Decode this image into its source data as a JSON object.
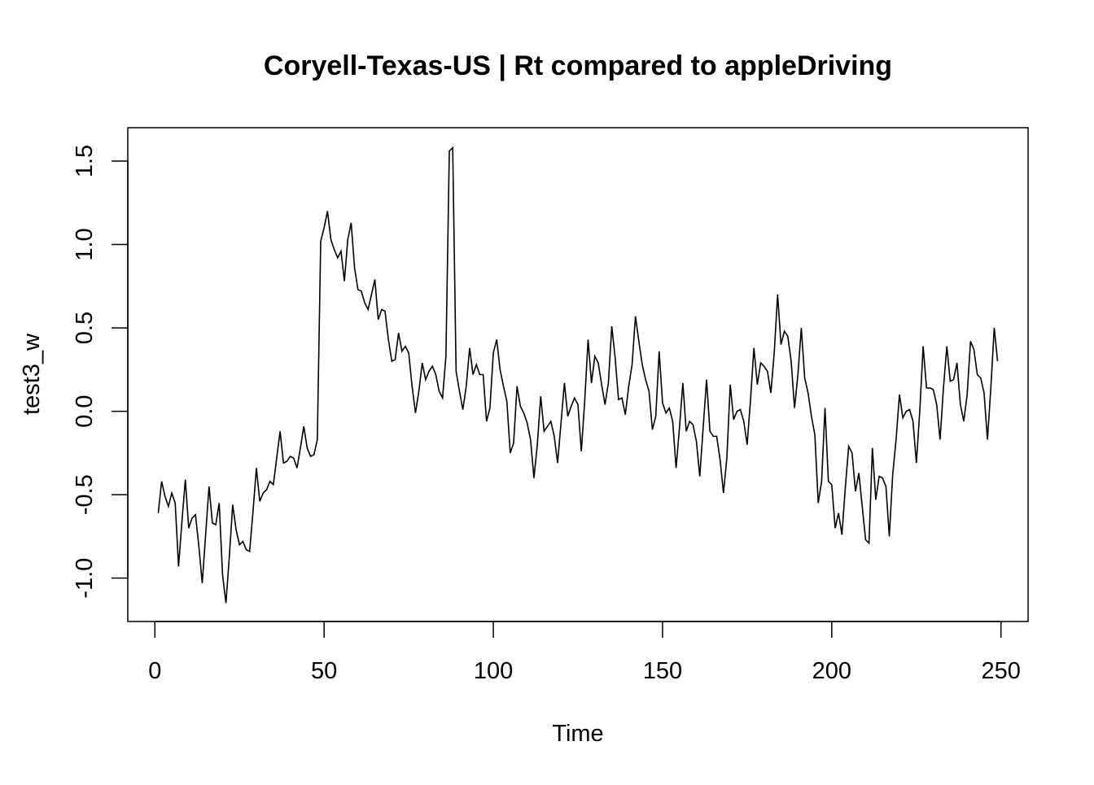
{
  "chart_data": {
    "type": "line",
    "title": "Coryell-Texas-US | Rt compared to appleDriving",
    "xlabel": "Time",
    "ylabel": "test3_w",
    "xlim": [
      -8,
      258
    ],
    "ylim": [
      -1.26,
      1.7
    ],
    "x_ticks": [
      0,
      50,
      100,
      150,
      200,
      250
    ],
    "y_ticks": [
      -1.0,
      -0.5,
      0.0,
      0.5,
      1.0,
      1.5
    ],
    "x_tick_labels": [
      "0",
      "50",
      "100",
      "150",
      "200",
      "250"
    ],
    "y_tick_labels": [
      "-1.0",
      "-0.5",
      "0.0",
      "0.5",
      "1.0",
      "1.5"
    ],
    "grid": false,
    "line_color": "#000000",
    "series": [
      {
        "x_start": 1,
        "x_step": 1,
        "values": [
          -0.61,
          -0.42,
          -0.51,
          -0.57,
          -0.49,
          -0.55,
          -0.93,
          -0.66,
          -0.41,
          -0.7,
          -0.64,
          -0.62,
          -0.81,
          -1.03,
          -0.74,
          -0.45,
          -0.67,
          -0.68,
          -0.55,
          -0.98,
          -1.15,
          -0.87,
          -0.56,
          -0.71,
          -0.8,
          -0.78,
          -0.83,
          -0.84,
          -0.6,
          -0.34,
          -0.54,
          -0.49,
          -0.47,
          -0.42,
          -0.44,
          -0.28,
          -0.12,
          -0.31,
          -0.3,
          -0.27,
          -0.28,
          -0.34,
          -0.22,
          -0.09,
          -0.22,
          -0.27,
          -0.26,
          -0.17,
          1.02,
          1.1,
          1.2,
          1.03,
          0.97,
          0.92,
          0.96,
          0.78,
          1.03,
          1.13,
          0.86,
          0.73,
          0.72,
          0.65,
          0.61,
          0.7,
          0.79,
          0.55,
          0.61,
          0.6,
          0.43,
          0.3,
          0.31,
          0.47,
          0.36,
          0.39,
          0.35,
          0.15,
          -0.01,
          0.12,
          0.29,
          0.19,
          0.24,
          0.27,
          0.22,
          0.12,
          0.08,
          0.33,
          1.56,
          1.58,
          0.24,
          0.12,
          0.01,
          0.15,
          0.38,
          0.22,
          0.28,
          0.22,
          0.22,
          -0.06,
          0.02,
          0.35,
          0.43,
          0.25,
          0.15,
          0.06,
          -0.25,
          -0.19,
          0.15,
          0.03,
          -0.01,
          -0.07,
          -0.17,
          -0.4,
          -0.2,
          0.09,
          -0.12,
          -0.09,
          -0.06,
          -0.15,
          -0.31,
          -0.07,
          0.17,
          -0.03,
          0.03,
          0.08,
          0.04,
          -0.24,
          0.06,
          0.43,
          0.17,
          0.33,
          0.29,
          0.16,
          0.04,
          0.17,
          0.51,
          0.32,
          0.07,
          0.08,
          -0.02,
          0.15,
          0.28,
          0.57,
          0.42,
          0.28,
          0.19,
          0.12,
          -0.11,
          -0.03,
          0.36,
          0.05,
          -0.01,
          0.02,
          -0.06,
          -0.34,
          -0.1,
          0.17,
          -0.12,
          -0.06,
          -0.08,
          -0.18,
          -0.39,
          -0.1,
          0.19,
          -0.12,
          -0.15,
          -0.15,
          -0.29,
          -0.49,
          -0.28,
          0.16,
          -0.05,
          0.0,
          0.01,
          -0.06,
          -0.2,
          0.07,
          0.38,
          0.16,
          0.29,
          0.27,
          0.24,
          0.11,
          0.35,
          0.7,
          0.4,
          0.48,
          0.45,
          0.3,
          0.02,
          0.22,
          0.5,
          0.2,
          0.11,
          -0.03,
          -0.14,
          -0.55,
          -0.42,
          0.02,
          -0.42,
          -0.44,
          -0.7,
          -0.61,
          -0.74,
          -0.46,
          -0.21,
          -0.25,
          -0.48,
          -0.37,
          -0.57,
          -0.77,
          -0.79,
          -0.22,
          -0.53,
          -0.39,
          -0.4,
          -0.45,
          -0.75,
          -0.38,
          -0.17,
          0.1,
          -0.04,
          0.0,
          0.01,
          -0.06,
          -0.31,
          0.0,
          0.39,
          0.14,
          0.14,
          0.13,
          0.04,
          -0.17,
          0.14,
          0.39,
          0.18,
          0.19,
          0.29,
          0.04,
          -0.06,
          0.1,
          0.42,
          0.37,
          0.22,
          0.2,
          0.11,
          -0.17,
          0.14,
          0.5,
          0.3
        ]
      }
    ]
  }
}
